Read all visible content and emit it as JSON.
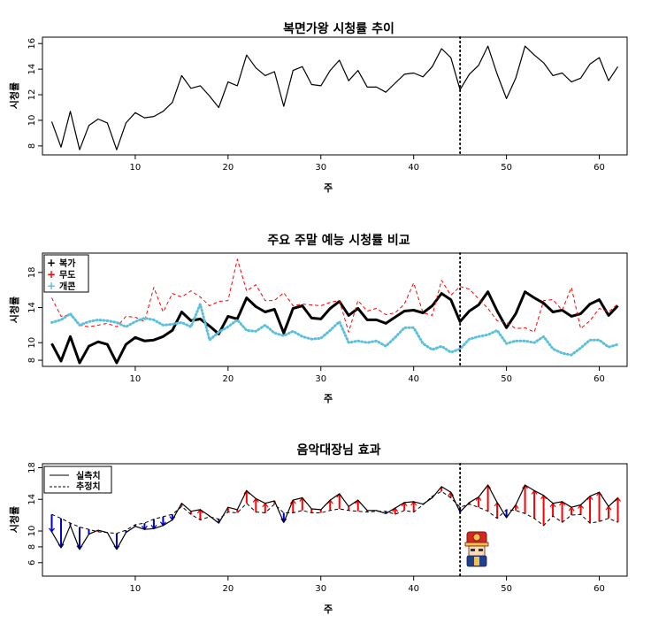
{
  "chart_data": [
    {
      "type": "line",
      "title": "복면가왕 시청률 추이",
      "xlabel": "주",
      "ylabel": "시청률",
      "xlim": [
        0,
        63
      ],
      "ylim": [
        7.3,
        16.5
      ],
      "x_ticks": [
        10,
        20,
        30,
        40,
        50,
        60
      ],
      "y_ticks": [
        8,
        10,
        12,
        14,
        16
      ],
      "vline": 45,
      "series": [
        {
          "style": "solid",
          "color": "#000000",
          "values": [
            9.9,
            7.9,
            10.7,
            7.7,
            9.6,
            10.1,
            9.8,
            7.7,
            9.8,
            10.6,
            10.2,
            10.3,
            10.7,
            11.4,
            13.5,
            12.5,
            12.7,
            11.9,
            11.0,
            13.0,
            12.7,
            15.1,
            14.1,
            13.5,
            13.8,
            11.1,
            13.9,
            14.2,
            12.8,
            12.7,
            13.9,
            14.7,
            13.1,
            13.9,
            12.6,
            12.6,
            12.2,
            12.9,
            13.6,
            13.7,
            13.4,
            14.2,
            15.6,
            14.9,
            12.4,
            13.6,
            14.3,
            15.8,
            13.6,
            11.7,
            13.3,
            15.8,
            15.1,
            14.5,
            13.5,
            13.7,
            13.0,
            13.3,
            14.4,
            14.9,
            13.1,
            14.2
          ]
        }
      ]
    },
    {
      "type": "line",
      "title": "주요 주말 예능 시청률 비교",
      "xlabel": "주",
      "ylabel": "시청률",
      "xlim": [
        0,
        63
      ],
      "ylim": [
        7.3,
        20.2
      ],
      "x_ticks": [
        10,
        20,
        30,
        40,
        50,
        60
      ],
      "y_ticks": [
        8,
        10,
        14,
        18
      ],
      "vline": 45,
      "legend": {
        "position": "top-left",
        "entries": [
          "복가",
          "무도",
          "개콘"
        ]
      },
      "series": [
        {
          "name": "복가",
          "style": "bold",
          "color": "#000000",
          "values": [
            9.9,
            7.9,
            10.7,
            7.7,
            9.6,
            10.1,
            9.8,
            7.7,
            9.8,
            10.6,
            10.2,
            10.3,
            10.7,
            11.4,
            13.5,
            12.5,
            12.7,
            11.9,
            11.0,
            13.0,
            12.7,
            15.1,
            14.1,
            13.5,
            13.8,
            11.1,
            13.9,
            14.2,
            12.8,
            12.7,
            13.9,
            14.7,
            13.1,
            13.9,
            12.6,
            12.6,
            12.2,
            12.9,
            13.6,
            13.7,
            13.4,
            14.2,
            15.6,
            14.9,
            12.4,
            13.6,
            14.3,
            15.8,
            13.6,
            11.7,
            13.3,
            15.8,
            15.1,
            14.5,
            13.5,
            13.7,
            13.0,
            13.3,
            14.4,
            14.9,
            13.1,
            14.2
          ]
        },
        {
          "name": "무도",
          "style": "dashed",
          "color": "#ff0000",
          "values": [
            15.1,
            13.0,
            13.2,
            12.0,
            11.8,
            12.0,
            12.2,
            11.8,
            13.0,
            12.9,
            12.4,
            16.3,
            13.5,
            15.6,
            15.2,
            15.9,
            15.2,
            14.2,
            14.7,
            14.8,
            19.5,
            15.9,
            16.6,
            14.8,
            14.8,
            15.7,
            14.2,
            14.4,
            14.3,
            14.2,
            14.6,
            14.8,
            11.2,
            14.8,
            13.6,
            13.9,
            13.2,
            13.4,
            14.4,
            16.8,
            13.4,
            13.1,
            17.1,
            15.4,
            16.4,
            16.1,
            15.0,
            13.9,
            12.5,
            12.3,
            11.6,
            11.7,
            11.2,
            14.8,
            14.9,
            13.7,
            16.3,
            11.6,
            12.5,
            13.9,
            13.5,
            14.4
          ]
        },
        {
          "name": "개콘",
          "style": "dotted",
          "color": "#5bc0de",
          "values": [
            12.3,
            12.6,
            13.3,
            12.0,
            12.4,
            12.6,
            12.5,
            12.3,
            11.8,
            12.4,
            12.8,
            12.6,
            12.0,
            12.1,
            12.3,
            11.8,
            14.4,
            10.3,
            11.2,
            11.8,
            12.6,
            11.4,
            11.3,
            12.0,
            11.1,
            10.8,
            11.3,
            10.7,
            10.4,
            10.5,
            11.4,
            12.4,
            10.0,
            10.2,
            10.0,
            10.2,
            9.6,
            10.6,
            11.7,
            11.7,
            9.9,
            9.2,
            9.6,
            8.9,
            9.3,
            10.4,
            10.7,
            10.9,
            11.4,
            9.9,
            10.2,
            10.2,
            10.0,
            10.7,
            9.3,
            8.8,
            8.6,
            9.4,
            10.3,
            10.3,
            9.5,
            9.8
          ]
        }
      ]
    },
    {
      "type": "line",
      "title": "음악대장님 효과",
      "xlabel": "주",
      "ylabel": "시청률",
      "xlim": [
        0,
        63
      ],
      "ylim": [
        4.3,
        18.5
      ],
      "x_ticks": [
        10,
        20,
        30,
        40,
        50,
        60
      ],
      "y_ticks": [
        6,
        8,
        10,
        14,
        18
      ],
      "vline": 45,
      "legend": {
        "position": "top-left",
        "entries": [
          "실측치",
          "추정치"
        ]
      },
      "series": [
        {
          "name": "실측치",
          "style": "solid",
          "color": "#000000",
          "values": [
            9.9,
            7.9,
            10.7,
            7.7,
            9.6,
            10.1,
            9.8,
            7.7,
            9.8,
            10.6,
            10.2,
            10.3,
            10.7,
            11.4,
            13.5,
            12.5,
            12.7,
            11.9,
            11.0,
            13.0,
            12.7,
            15.1,
            14.1,
            13.5,
            13.8,
            11.1,
            13.9,
            14.2,
            12.8,
            12.7,
            13.9,
            14.7,
            13.1,
            13.9,
            12.6,
            12.6,
            12.2,
            12.9,
            13.6,
            13.7,
            13.4,
            14.2,
            15.6,
            14.9,
            12.4,
            13.6,
            14.3,
            15.8,
            13.6,
            11.7,
            13.3,
            15.8,
            15.1,
            14.5,
            13.5,
            13.7,
            13.0,
            13.3,
            14.4,
            14.9,
            13.1,
            14.2
          ]
        },
        {
          "name": "추정치",
          "style": "dashed",
          "color": "#000000",
          "values": [
            12.1,
            11.6,
            11.0,
            10.5,
            10.2,
            9.9,
            9.8,
            9.7,
            10.1,
            10.8,
            11.0,
            11.5,
            11.8,
            12.1,
            13.1,
            12.1,
            11.4,
            11.8,
            11.5,
            12.4,
            12.3,
            13.5,
            12.4,
            12.3,
            13.4,
            12.3,
            12.3,
            12.6,
            12.3,
            12.3,
            12.6,
            12.8,
            12.6,
            12.5,
            12.4,
            12.5,
            12.5,
            12.1,
            12.6,
            12.4,
            13.3,
            14.4,
            15.0,
            14.2,
            13.0,
            13.4,
            13.0,
            12.5,
            11.6,
            12.7,
            12.6,
            12.2,
            11.6,
            10.7,
            11.9,
            11.1,
            12.0,
            12.1,
            11.0,
            11.2,
            11.6,
            11.1
          ]
        }
      ],
      "residual_colors": {
        "positive": "#ff0000",
        "negative": "#0000cc"
      }
    }
  ],
  "annotation": {
    "icon": "music-captain-character-icon"
  }
}
